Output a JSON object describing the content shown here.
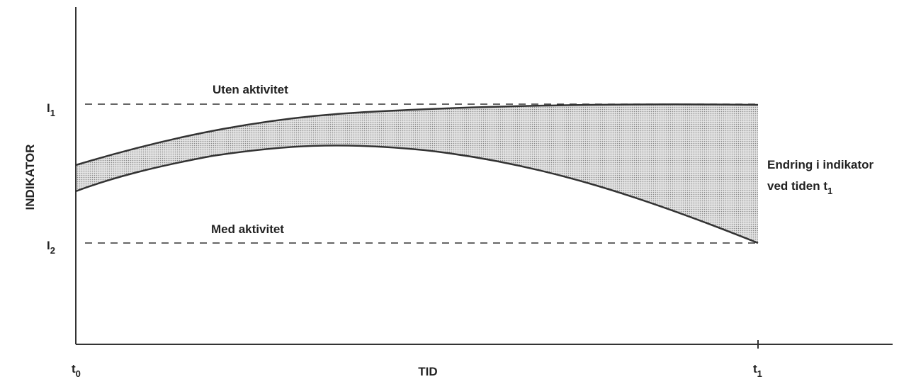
{
  "axes": {
    "y_label": "INDIKATOR",
    "x_label": "TID",
    "y_markers": [
      {
        "base": "I",
        "sub": "1"
      },
      {
        "base": "I",
        "sub": "2"
      }
    ],
    "x_markers": [
      {
        "base": "t",
        "sub": "0"
      },
      {
        "base": "t",
        "sub": "1"
      }
    ]
  },
  "lines": {
    "upper": "Uten aktivitet",
    "lower": "Med aktivitet"
  },
  "annotation": {
    "line1": "Endring i indikator",
    "line2": {
      "text": "ved tiden t",
      "sub": "1"
    }
  }
}
